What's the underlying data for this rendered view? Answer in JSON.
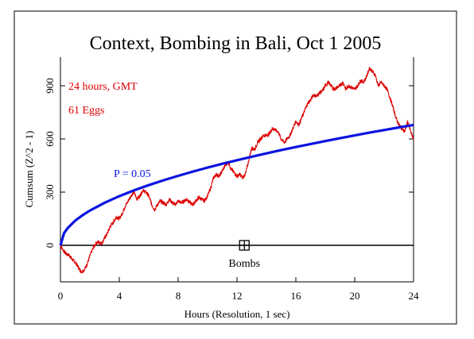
{
  "chart_data": {
    "type": "line",
    "title": "Context, Bombing in Bali, Oct 1 2005",
    "xlabel": "Hours (Resolution, 1 sec)",
    "ylabel": "Cumsum (Z^2 - 1)",
    "xlim": [
      0,
      24
    ],
    "ylim": [
      -180,
      1060
    ],
    "x_ticks": [
      0,
      4,
      8,
      12,
      16,
      20,
      24
    ],
    "y_ticks": [
      0,
      300,
      600,
      900
    ],
    "grid": false,
    "annotations": {
      "period": "24 hours, GMT",
      "eggs": "61 Eggs",
      "probability_label": "P = 0.05",
      "event_label": "Bombs",
      "event_x": 12.5
    },
    "colors": {
      "data_line": "#dd0000",
      "probability_curve": "#0a14e0",
      "axes": "#000000",
      "annotation_text": "#dd0000",
      "probability_text": "#0a14e0"
    },
    "series": [
      {
        "x": [
          0,
          0.2,
          0.4,
          0.6,
          0.8,
          1.0,
          1.2,
          1.4,
          1.6,
          1.8,
          2.0,
          2.2,
          2.4,
          2.6,
          2.8,
          3.0,
          3.2,
          3.4,
          3.6,
          3.8,
          4.0,
          4.2,
          4.4,
          4.6,
          4.8,
          5.0,
          5.2,
          5.4,
          5.6,
          5.8,
          6.0,
          6.2,
          6.4,
          6.6,
          6.8,
          7.0,
          7.2,
          7.4,
          7.6,
          7.8,
          8.0,
          8.2,
          8.4,
          8.6,
          8.8,
          9.0,
          9.2,
          9.4,
          9.6,
          9.8,
          10.0,
          10.2,
          10.4,
          10.6,
          10.8,
          11.0,
          11.2,
          11.4,
          11.6,
          11.8,
          12.0,
          12.2,
          12.4,
          12.6,
          12.8,
          13.0,
          13.2,
          13.4,
          13.6,
          13.8,
          14.0,
          14.2,
          14.4,
          14.6,
          14.8,
          15.0,
          15.2,
          15.4,
          15.6,
          15.8,
          16.0,
          16.2,
          16.4,
          16.6,
          16.8,
          17.0,
          17.2,
          17.4,
          17.6,
          17.8,
          18.0,
          18.2,
          18.4,
          18.6,
          18.8,
          19.0,
          19.2,
          19.4,
          19.6,
          19.8,
          20.0,
          20.2,
          20.4,
          20.6,
          20.8,
          21.0,
          21.2,
          21.4,
          21.6,
          21.8,
          22.0,
          22.2,
          22.4,
          22.6,
          22.8,
          23.0,
          23.2,
          23.4,
          23.6,
          23.8,
          24.0
        ],
        "values": [
          0,
          -30,
          -50,
          -55,
          -80,
          -95,
          -120,
          -150,
          -140,
          -110,
          -60,
          -20,
          10,
          20,
          10,
          40,
          70,
          110,
          130,
          160,
          150,
          180,
          220,
          250,
          280,
          300,
          260,
          280,
          310,
          300,
          280,
          230,
          200,
          230,
          250,
          240,
          230,
          260,
          240,
          230,
          250,
          240,
          250,
          260,
          240,
          230,
          250,
          270,
          260,
          250,
          280,
          320,
          380,
          400,
          390,
          420,
          450,
          470,
          430,
          410,
          390,
          400,
          380,
          410,
          480,
          550,
          540,
          580,
          600,
          620,
          620,
          630,
          660,
          650,
          640,
          600,
          580,
          600,
          620,
          660,
          700,
          680,
          720,
          760,
          800,
          820,
          850,
          840,
          860,
          870,
          900,
          920,
          900,
          880,
          890,
          900,
          920,
          880,
          900,
          890,
          880,
          900,
          930,
          920,
          950,
          1000,
          980,
          960,
          900,
          920,
          900,
          880,
          830,
          780,
          720,
          680,
          660,
          640,
          700,
          640,
          600
        ]
      },
      {
        "name": "P = 0.05",
        "x": [
          0,
          0.25,
          0.5,
          1,
          1.5,
          2,
          3,
          4,
          5,
          6,
          7,
          8,
          9,
          10,
          11,
          12,
          13,
          14,
          15,
          16,
          17,
          18,
          19,
          20,
          21,
          22,
          23,
          24
        ],
        "values": [
          0,
          69.3,
          98.0,
          138.6,
          169.7,
          196.0,
          240.0,
          277.2,
          309.9,
          339.5,
          366.7,
          392.0,
          415.8,
          438.3,
          459.7,
          480.1,
          499.7,
          518.6,
          536.8,
          554.4,
          571.4,
          588.0,
          604.1,
          619.8,
          635.2,
          650.1,
          664.8,
          679.0
        ]
      }
    ]
  }
}
